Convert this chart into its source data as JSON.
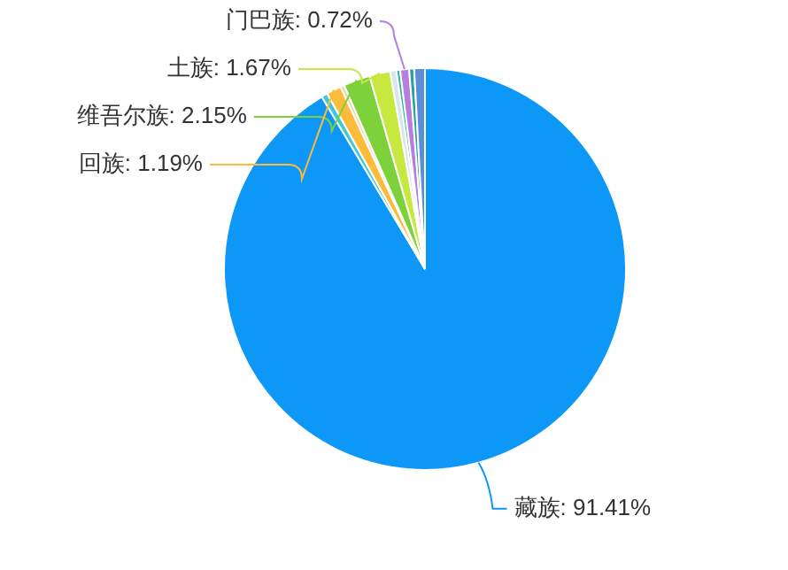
{
  "chart_data": {
    "type": "pie",
    "categories": [
      "藏族",
      null,
      "回族",
      null,
      "维吾尔族",
      "土族",
      null,
      null,
      "门巴族",
      null,
      null
    ],
    "values": [
      91.41,
      0.5,
      1.19,
      0.3,
      2.15,
      1.67,
      0.5,
      0.3,
      0.72,
      0.4,
      0.86
    ],
    "colors": [
      "#0d97f6",
      "#3ec9d6",
      "#fdbb3c",
      "#f4d2a0",
      "#7dd13b",
      "#c6e83f",
      "#d9e5e8",
      "#2cb5a5",
      "#b67ee0",
      "#2c9fa5",
      "#5a8fd8"
    ],
    "value_labels": [
      "91.41%",
      null,
      "1.19%",
      null,
      "2.15%",
      "1.67%",
      null,
      null,
      "0.72%",
      null,
      null
    ],
    "legend": false
  }
}
